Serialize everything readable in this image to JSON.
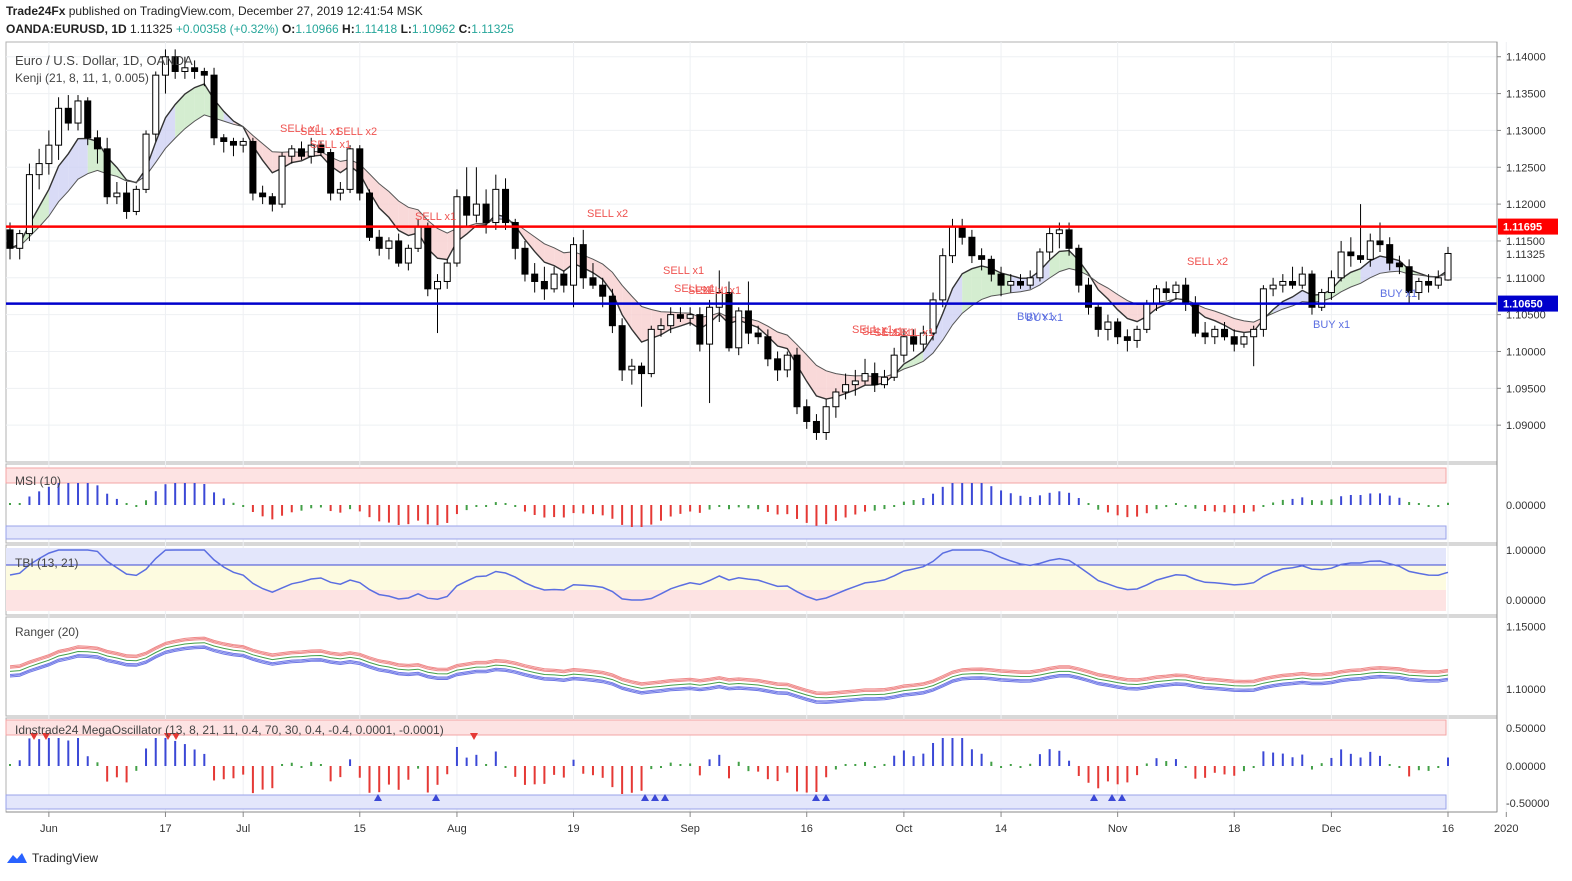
{
  "header": {
    "publisher": "Trade24Fx",
    "published_text": "published on TradingView.com, December 27, 2019 12:41:54 MSK",
    "symbol": "OANDA:EURUSD, 1D",
    "last": "1.11325",
    "change": "+0.00358 (+0.32%)",
    "o_label": "O:",
    "o": "1.10966",
    "h_label": "H:",
    "h": "1.11418",
    "l_label": "L:",
    "l": "1.10962",
    "c_label": "C:",
    "c": "1.11325"
  },
  "main_pane": {
    "title": "Euro / U.S. Dollar, 1D, OANDA",
    "indicator": "Kenji (21, 8, 11, 1, 0.005)",
    "price_ticks": [
      "1.14000",
      "1.13500",
      "1.13000",
      "1.12500",
      "1.12000",
      "1.11500",
      "1.11000",
      "1.10500",
      "1.10000",
      "1.09500",
      "1.09000"
    ],
    "red_level_label": "1.11695",
    "current_label": "1.11325",
    "blue_level_label": "1.10650",
    "signals": [
      {
        "text": "SELL x1"
      },
      {
        "text": "SELL x1"
      },
      {
        "text": "SELL x2"
      },
      {
        "text": "SELL x1"
      },
      {
        "text": "SELL x1"
      },
      {
        "text": "SELL x2"
      },
      {
        "text": "SELL x1"
      },
      {
        "text": "SELL x1"
      },
      {
        "text": "SELL x1"
      },
      {
        "text": "SELL x1"
      },
      {
        "text": "SELL x1"
      },
      {
        "text": "SELL x1"
      },
      {
        "text": "SELL x1"
      },
      {
        "text": "SELL x1"
      },
      {
        "text": "SELL x2"
      },
      {
        "text": "BUY x1"
      },
      {
        "text": "BUY x1"
      },
      {
        "text": "BUY x1"
      },
      {
        "text": "BUY x1"
      }
    ]
  },
  "msi_pane": {
    "label": "MSI (10)",
    "ticks": [
      "0.00000"
    ]
  },
  "tbi_pane": {
    "label": "TBI (13, 21)",
    "ticks": [
      "1.00000",
      "0.00000"
    ]
  },
  "ranger_pane": {
    "label": "Ranger (20)",
    "ticks": [
      "1.15000",
      "1.10000"
    ]
  },
  "mega_pane": {
    "label": "Idnstrade24 MegaOscillator (13, 8, 21, 11, 0.4, 70, 30, 0.4, -0.4, 0.0001, -0.0001)",
    "ticks": [
      "0.50000",
      "0.00000",
      "-0.50000"
    ]
  },
  "x_axis": {
    "labels": [
      "Jun",
      "17",
      "Jul",
      "15",
      "Aug",
      "19",
      "Sep",
      "16",
      "Oct",
      "14",
      "Nov",
      "18",
      "Dec",
      "16",
      "2020"
    ]
  },
  "footer": {
    "brand": "TradingView"
  },
  "colors": {
    "up": "#ffffff",
    "down": "#000000",
    "red_line": "#ff0000",
    "blue_line": "#0000cc",
    "sell": "#ef5350",
    "buy": "#5b6ee1"
  },
  "chart_data": {
    "type": "candlestick",
    "series": [
      {
        "name": "EURUSD",
        "ohlc": [
          [
            1.1165,
            1.1175,
            1.1125,
            1.114
          ],
          [
            1.114,
            1.1165,
            1.1125,
            1.116
          ],
          [
            1.116,
            1.1255,
            1.115,
            1.124
          ],
          [
            1.124,
            1.1275,
            1.122,
            1.1255
          ],
          [
            1.1255,
            1.13,
            1.124,
            1.128
          ],
          [
            1.128,
            1.1345,
            1.126,
            1.133
          ],
          [
            1.133,
            1.1348,
            1.13,
            1.131
          ],
          [
            1.131,
            1.1348,
            1.13,
            1.134
          ],
          [
            1.134,
            1.1345,
            1.128,
            1.129
          ],
          [
            1.129,
            1.13,
            1.1255,
            1.1275
          ],
          [
            1.1275,
            1.129,
            1.12,
            1.121
          ],
          [
            1.121,
            1.123,
            1.12,
            1.1215
          ],
          [
            1.1215,
            1.123,
            1.118,
            1.119
          ],
          [
            1.119,
            1.1225,
            1.1185,
            1.122
          ],
          [
            1.122,
            1.13,
            1.1215,
            1.1295
          ],
          [
            1.1295,
            1.138,
            1.1285,
            1.1375
          ],
          [
            1.1375,
            1.141,
            1.135,
            1.14
          ],
          [
            1.14,
            1.141,
            1.137,
            1.138
          ],
          [
            1.138,
            1.14,
            1.137,
            1.1385
          ],
          [
            1.1385,
            1.1395,
            1.137,
            1.138
          ],
          [
            1.138,
            1.1385,
            1.136,
            1.1375
          ],
          [
            1.1375,
            1.1385,
            1.128,
            1.129
          ],
          [
            1.129,
            1.1295,
            1.127,
            1.1285
          ],
          [
            1.1285,
            1.129,
            1.1265,
            1.128
          ],
          [
            1.128,
            1.129,
            1.127,
            1.1285
          ],
          [
            1.1285,
            1.129,
            1.1205,
            1.1215
          ],
          [
            1.1215,
            1.1225,
            1.12,
            1.121
          ],
          [
            1.121,
            1.1215,
            1.119,
            1.12
          ],
          [
            1.12,
            1.127,
            1.1195,
            1.1265
          ],
          [
            1.1265,
            1.128,
            1.1255,
            1.1275
          ],
          [
            1.1275,
            1.1285,
            1.126,
            1.1265
          ],
          [
            1.1265,
            1.129,
            1.1255,
            1.128
          ],
          [
            1.128,
            1.1285,
            1.1265,
            1.127
          ],
          [
            1.127,
            1.1275,
            1.1205,
            1.1215
          ],
          [
            1.1215,
            1.123,
            1.1205,
            1.122
          ],
          [
            1.122,
            1.128,
            1.1215,
            1.1275
          ],
          [
            1.1275,
            1.128,
            1.1205,
            1.1215
          ],
          [
            1.1215,
            1.122,
            1.115,
            1.1155
          ],
          [
            1.1155,
            1.1165,
            1.113,
            1.114
          ],
          [
            1.114,
            1.1155,
            1.1125,
            1.115
          ],
          [
            1.115,
            1.116,
            1.1115,
            1.112
          ],
          [
            1.112,
            1.1145,
            1.111,
            1.114
          ],
          [
            1.114,
            1.118,
            1.1135,
            1.117
          ],
          [
            1.117,
            1.1175,
            1.1075,
            1.1085
          ],
          [
            1.1085,
            1.1105,
            1.1025,
            1.1095
          ],
          [
            1.1095,
            1.1125,
            1.1085,
            1.112
          ],
          [
            1.112,
            1.122,
            1.1115,
            1.121
          ],
          [
            1.121,
            1.125,
            1.117,
            1.1185
          ],
          [
            1.1185,
            1.125,
            1.1175,
            1.12
          ],
          [
            1.12,
            1.122,
            1.116,
            1.1175
          ],
          [
            1.1175,
            1.124,
            1.1165,
            1.122
          ],
          [
            1.122,
            1.1235,
            1.1165,
            1.1175
          ],
          [
            1.1175,
            1.118,
            1.1125,
            1.114
          ],
          [
            1.114,
            1.115,
            1.1095,
            1.1105
          ],
          [
            1.1105,
            1.112,
            1.108,
            1.1095
          ],
          [
            1.1095,
            1.1115,
            1.107,
            1.1085
          ],
          [
            1.1085,
            1.1115,
            1.108,
            1.1105
          ],
          [
            1.1105,
            1.111,
            1.108,
            1.109
          ],
          [
            1.109,
            1.1155,
            1.106,
            1.1145
          ],
          [
            1.1145,
            1.1165,
            1.1085,
            1.11
          ],
          [
            1.11,
            1.112,
            1.1085,
            1.109
          ],
          [
            1.109,
            1.11,
            1.106,
            1.1075
          ],
          [
            1.1075,
            1.1085,
            1.1025,
            1.1035
          ],
          [
            1.1035,
            1.1045,
            1.096,
            1.0975
          ],
          [
            1.0975,
            1.099,
            1.0955,
            1.098
          ],
          [
            1.098,
            1.0985,
            1.0925,
            1.097
          ],
          [
            1.097,
            1.1035,
            1.0965,
            1.103
          ],
          [
            1.103,
            1.1045,
            1.102,
            1.1035
          ],
          [
            1.1035,
            1.106,
            1.1025,
            1.105
          ],
          [
            1.105,
            1.106,
            1.104,
            1.1045
          ],
          [
            1.1045,
            1.106,
            1.1035,
            1.105
          ],
          [
            1.105,
            1.106,
            1.1,
            1.101
          ],
          [
            1.101,
            1.107,
            1.093,
            1.106
          ],
          [
            1.106,
            1.111,
            1.104,
            1.108
          ],
          [
            1.108,
            1.1095,
            1.1,
            1.1005
          ],
          [
            1.1005,
            1.106,
            1.0995,
            1.1055
          ],
          [
            1.1055,
            1.1095,
            1.101,
            1.1025
          ],
          [
            1.1025,
            1.1035,
            1.101,
            1.102
          ],
          [
            1.102,
            1.103,
            1.098,
            1.099
          ],
          [
            1.099,
            1.1,
            1.096,
            1.0975
          ],
          [
            1.0975,
            1.1,
            1.0965,
            1.0995
          ],
          [
            1.0995,
            1.1005,
            1.0915,
            1.0925
          ],
          [
            1.0925,
            1.0935,
            1.0895,
            1.0905
          ],
          [
            1.0905,
            1.0915,
            1.088,
            1.089
          ],
          [
            1.089,
            1.0935,
            1.088,
            1.0925
          ],
          [
            1.0925,
            1.095,
            1.091,
            1.0945
          ],
          [
            1.0945,
            1.097,
            1.0935,
            1.0955
          ],
          [
            1.0955,
            1.0975,
            1.094,
            1.096
          ],
          [
            1.096,
            1.099,
            1.0955,
            1.097
          ],
          [
            1.097,
            1.0985,
            1.0945,
            1.0955
          ],
          [
            1.0955,
            1.0975,
            1.095,
            1.0965
          ],
          [
            1.0965,
            1.1005,
            1.096,
            1.0995
          ],
          [
            1.0995,
            1.103,
            1.0985,
            1.102
          ],
          [
            1.102,
            1.103,
            1.1,
            1.101
          ],
          [
            1.101,
            1.1035,
            1.1,
            1.1025
          ],
          [
            1.1025,
            1.108,
            1.1015,
            1.107
          ],
          [
            1.107,
            1.114,
            1.106,
            1.113
          ],
          [
            1.113,
            1.118,
            1.112,
            1.117
          ],
          [
            1.117,
            1.118,
            1.1145,
            1.1155
          ],
          [
            1.1155,
            1.1165,
            1.112,
            1.113
          ],
          [
            1.113,
            1.114,
            1.111,
            1.1125
          ],
          [
            1.1125,
            1.113,
            1.1095,
            1.1105
          ],
          [
            1.1105,
            1.1115,
            1.1075,
            1.109
          ],
          [
            1.109,
            1.1105,
            1.108,
            1.1095
          ],
          [
            1.1095,
            1.1105,
            1.1085,
            1.109
          ],
          [
            1.109,
            1.111,
            1.1085,
            1.11
          ],
          [
            1.11,
            1.114,
            1.1095,
            1.1135
          ],
          [
            1.1135,
            1.117,
            1.1125,
            1.116
          ],
          [
            1.116,
            1.1175,
            1.114,
            1.1165
          ],
          [
            1.1165,
            1.1175,
            1.113,
            1.114
          ],
          [
            1.114,
            1.1145,
            1.108,
            1.109
          ],
          [
            1.109,
            1.11,
            1.105,
            1.106
          ],
          [
            1.106,
            1.1065,
            1.102,
            1.103
          ],
          [
            1.103,
            1.105,
            1.1015,
            1.104
          ],
          [
            1.104,
            1.1045,
            1.101,
            1.102
          ],
          [
            1.102,
            1.103,
            1.1,
            1.1015
          ],
          [
            1.1015,
            1.1035,
            1.1005,
            1.103
          ],
          [
            1.103,
            1.107,
            1.1025,
            1.1065
          ],
          [
            1.1065,
            1.109,
            1.1055,
            1.1085
          ],
          [
            1.1085,
            1.1095,
            1.107,
            1.108
          ],
          [
            1.108,
            1.1095,
            1.107,
            1.109
          ],
          [
            1.109,
            1.11,
            1.1055,
            1.1065
          ],
          [
            1.1065,
            1.1075,
            1.102,
            1.1025
          ],
          [
            1.1025,
            1.104,
            1.101,
            1.102
          ],
          [
            1.102,
            1.1035,
            1.101,
            1.103
          ],
          [
            1.103,
            1.104,
            1.1015,
            1.102
          ],
          [
            1.102,
            1.103,
            1.1,
            1.101
          ],
          [
            1.101,
            1.1025,
            1.1005,
            1.102
          ],
          [
            1.102,
            1.1035,
            1.098,
            1.103
          ],
          [
            1.103,
            1.109,
            1.102,
            1.1085
          ],
          [
            1.1085,
            1.11,
            1.1075,
            1.109
          ],
          [
            1.109,
            1.1105,
            1.108,
            1.1095
          ],
          [
            1.1095,
            1.1115,
            1.1085,
            1.109
          ],
          [
            1.109,
            1.1115,
            1.1085,
            1.1105
          ],
          [
            1.1105,
            1.111,
            1.105,
            1.106
          ],
          [
            1.106,
            1.1085,
            1.1055,
            1.108
          ],
          [
            1.108,
            1.111,
            1.107,
            1.11
          ],
          [
            1.11,
            1.115,
            1.1095,
            1.1135
          ],
          [
            1.1135,
            1.1155,
            1.1115,
            1.113
          ],
          [
            1.113,
            1.12,
            1.112,
            1.1125
          ],
          [
            1.1125,
            1.116,
            1.1115,
            1.115
          ],
          [
            1.115,
            1.1175,
            1.1135,
            1.1145
          ],
          [
            1.1145,
            1.1155,
            1.111,
            1.112
          ],
          [
            1.112,
            1.113,
            1.1105,
            1.1115
          ],
          [
            1.1115,
            1.1125,
            1.1065,
            1.108
          ],
          [
            1.108,
            1.11,
            1.107,
            1.1095
          ],
          [
            1.1095,
            1.1105,
            1.108,
            1.109
          ],
          [
            1.109,
            1.111,
            1.1085,
            1.11
          ],
          [
            1.1097,
            1.1142,
            1.1096,
            1.1133
          ]
        ]
      }
    ],
    "x_tick_labels": [
      "Jun",
      "17",
      "Jul",
      "15",
      "Aug",
      "19",
      "Sep",
      "16",
      "Oct",
      "14",
      "Nov",
      "18",
      "Dec",
      "16",
      "2020"
    ],
    "ylim": [
      1.085,
      1.142
    ],
    "levels": [
      {
        "name": "resistance",
        "value": 1.11695
      },
      {
        "name": "support",
        "value": 1.1065
      }
    ],
    "grid": true
  }
}
